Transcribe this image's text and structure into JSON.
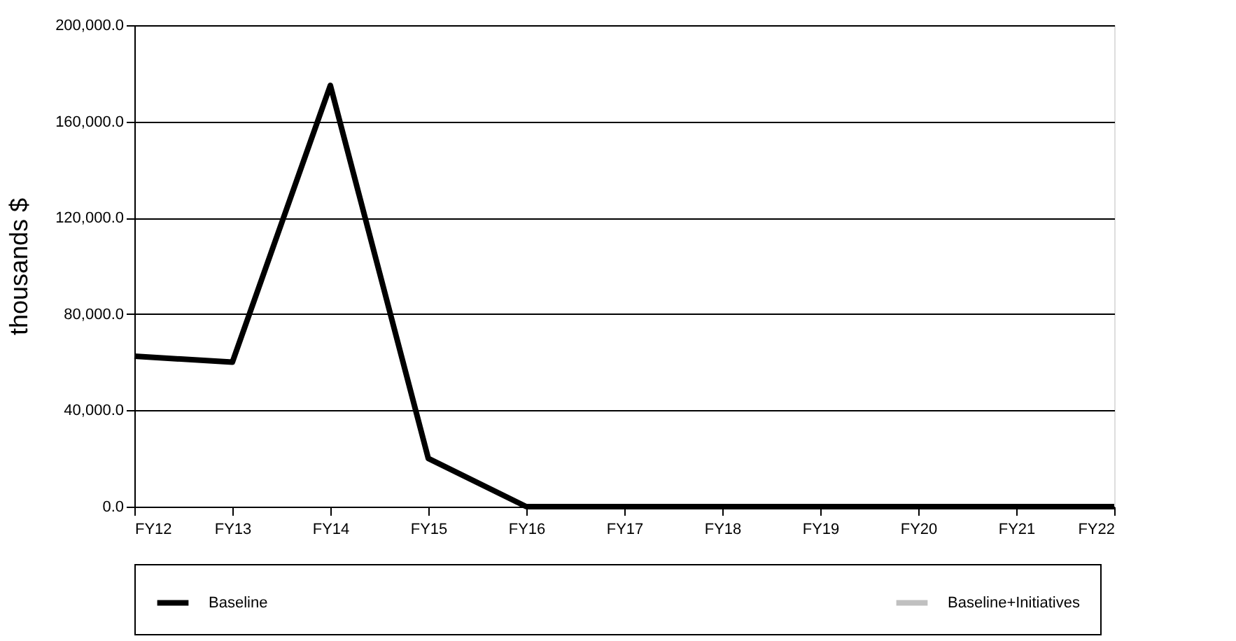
{
  "chart_data": {
    "type": "line",
    "ylabel": "thousands $",
    "categories": [
      "FY12",
      "FY13",
      "FY14",
      "FY15",
      "FY16",
      "FY17",
      "FY18",
      "FY19",
      "FY20",
      "FY21",
      "FY22"
    ],
    "series": [
      {
        "name": "Baseline",
        "color": "#000000",
        "values": [
          62500,
          60000,
          175000,
          20000,
          0,
          0,
          0,
          0,
          0,
          0,
          0
        ]
      },
      {
        "name": "Baseline+Initiatives",
        "color": "#c0c0c0",
        "values": [
          null,
          null,
          null,
          null,
          null,
          null,
          null,
          null,
          null,
          null,
          null
        ]
      }
    ],
    "ylim": [
      0,
      200000
    ],
    "yticks": [
      {
        "value": 0,
        "label": "0.0"
      },
      {
        "value": 40000,
        "label": "40,000.0"
      },
      {
        "value": 80000,
        "label": "80,000.0"
      },
      {
        "value": 120000,
        "label": "120,000.0"
      },
      {
        "value": 160000,
        "label": "160,000.0"
      },
      {
        "value": 200000,
        "label": "200,000.0"
      }
    ],
    "grid": "y",
    "legend": "bottom",
    "marker": "none",
    "line_style": "solid"
  }
}
